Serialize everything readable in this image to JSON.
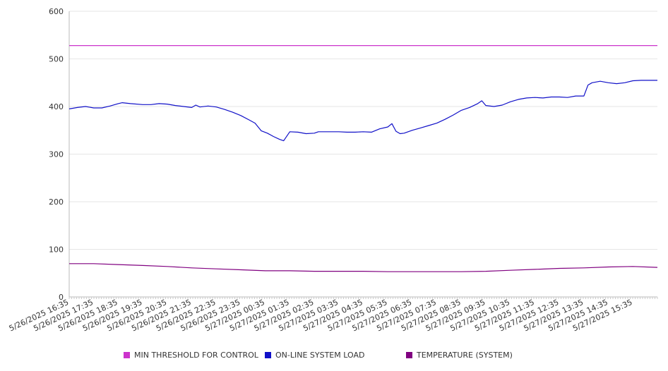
{
  "chart_data": {
    "type": "line",
    "title": "",
    "xlabel": "",
    "ylabel": "",
    "ylim": [
      0,
      600
    ],
    "y_ticks": [
      0,
      100,
      200,
      300,
      400,
      500,
      600
    ],
    "grid": "horizontal",
    "legend_position": "bottom",
    "x_tick_labels": [
      "5/26/2025 16:35",
      "5/26/2025 17:35",
      "5/26/2025 18:35",
      "5/26/2025 19:35",
      "5/26/2025 20:35",
      "5/26/2025 21:35",
      "5/26/2025 22:35",
      "5/26/2025 23:35",
      "5/27/2025 00:35",
      "5/27/2025 01:35",
      "5/27/2025 02:35",
      "5/27/2025 03:35",
      "5/27/2025 04:35",
      "5/27/2025 05:35",
      "5/27/2025 06:35",
      "5/27/2025 07:35",
      "5/27/2025 08:35",
      "5/27/2025 09:35",
      "5/27/2025 10:35",
      "5/27/2025 11:35",
      "5/27/2025 12:35",
      "5/27/2025 13:35",
      "5/27/2025 14:35",
      "5/27/2025 15:35"
    ],
    "series": [
      {
        "name": "MIN THRESHOLD FOR CONTROL",
        "color": "#cc33cc",
        "points": [
          [
            "5/26/2025 16:35",
            528
          ],
          [
            "5/27/2025 16:35",
            528
          ]
        ]
      },
      {
        "name": "ON-LINE SYSTEM LOAD",
        "color": "#1010c8",
        "points": [
          [
            "5/26/2025 16:35",
            395
          ],
          [
            "5/26/2025 16:55",
            398
          ],
          [
            "5/26/2025 17:15",
            400
          ],
          [
            "5/26/2025 17:35",
            397
          ],
          [
            "5/26/2025 17:55",
            397
          ],
          [
            "5/26/2025 18:15",
            401
          ],
          [
            "5/26/2025 18:35",
            406
          ],
          [
            "5/26/2025 18:45",
            408
          ],
          [
            "5/26/2025 19:05",
            406
          ],
          [
            "5/26/2025 19:35",
            404
          ],
          [
            "5/26/2025 19:55",
            404
          ],
          [
            "5/26/2025 20:15",
            406
          ],
          [
            "5/26/2025 20:35",
            405
          ],
          [
            "5/26/2025 20:55",
            402
          ],
          [
            "5/26/2025 21:15",
            400
          ],
          [
            "5/26/2025 21:35",
            398
          ],
          [
            "5/26/2025 21:45",
            403
          ],
          [
            "5/26/2025 21:55",
            399
          ],
          [
            "5/26/2025 22:15",
            401
          ],
          [
            "5/26/2025 22:35",
            399
          ],
          [
            "5/26/2025 22:55",
            394
          ],
          [
            "5/26/2025 23:15",
            388
          ],
          [
            "5/26/2025 23:35",
            381
          ],
          [
            "5/26/2025 23:55",
            372
          ],
          [
            "5/27/2025 00:10",
            365
          ],
          [
            "5/27/2025 00:25",
            349
          ],
          [
            "5/27/2025 00:40",
            344
          ],
          [
            "5/27/2025 00:55",
            337
          ],
          [
            "5/27/2025 01:10",
            331
          ],
          [
            "5/27/2025 01:20",
            328
          ],
          [
            "5/27/2025 01:35",
            347
          ],
          [
            "5/27/2025 01:55",
            346
          ],
          [
            "5/27/2025 02:15",
            343
          ],
          [
            "5/27/2025 02:35",
            344
          ],
          [
            "5/27/2025 02:45",
            347
          ],
          [
            "5/27/2025 03:15",
            347
          ],
          [
            "5/27/2025 03:35",
            347
          ],
          [
            "5/27/2025 03:55",
            346
          ],
          [
            "5/27/2025 04:15",
            346
          ],
          [
            "5/27/2025 04:35",
            347
          ],
          [
            "5/27/2025 04:55",
            346
          ],
          [
            "5/27/2025 05:15",
            353
          ],
          [
            "5/27/2025 05:35",
            357
          ],
          [
            "5/27/2025 05:45",
            364
          ],
          [
            "5/27/2025 05:55",
            348
          ],
          [
            "5/27/2025 06:05",
            343
          ],
          [
            "5/27/2025 06:15",
            344
          ],
          [
            "5/27/2025 06:35",
            350
          ],
          [
            "5/27/2025 06:55",
            355
          ],
          [
            "5/27/2025 07:15",
            360
          ],
          [
            "5/27/2025 07:35",
            365
          ],
          [
            "5/27/2025 07:55",
            373
          ],
          [
            "5/27/2025 08:15",
            382
          ],
          [
            "5/27/2025 08:35",
            392
          ],
          [
            "5/27/2025 08:55",
            398
          ],
          [
            "5/27/2025 09:15",
            406
          ],
          [
            "5/27/2025 09:25",
            412
          ],
          [
            "5/27/2025 09:35",
            402
          ],
          [
            "5/27/2025 09:55",
            400
          ],
          [
            "5/27/2025 10:15",
            403
          ],
          [
            "5/27/2025 10:35",
            410
          ],
          [
            "5/27/2025 10:55",
            415
          ],
          [
            "5/27/2025 11:15",
            418
          ],
          [
            "5/27/2025 11:35",
            419
          ],
          [
            "5/27/2025 11:55",
            418
          ],
          [
            "5/27/2025 12:15",
            420
          ],
          [
            "5/27/2025 12:35",
            420
          ],
          [
            "5/27/2025 12:55",
            419
          ],
          [
            "5/27/2025 13:15",
            422
          ],
          [
            "5/27/2025 13:35",
            422
          ],
          [
            "5/27/2025 13:45",
            445
          ],
          [
            "5/27/2025 13:55",
            450
          ],
          [
            "5/27/2025 14:15",
            453
          ],
          [
            "5/27/2025 14:35",
            450
          ],
          [
            "5/27/2025 14:55",
            448
          ],
          [
            "5/27/2025 15:15",
            450
          ],
          [
            "5/27/2025 15:35",
            454
          ],
          [
            "5/27/2025 15:55",
            455
          ],
          [
            "5/27/2025 16:15",
            455
          ],
          [
            "5/27/2025 16:35",
            455
          ]
        ]
      },
      {
        "name": "TEMPERATURE (SYSTEM)",
        "color": "#800080",
        "points": [
          [
            "5/26/2025 16:35",
            70
          ],
          [
            "5/26/2025 17:35",
            70
          ],
          [
            "5/26/2025 18:35",
            68
          ],
          [
            "5/26/2025 19:35",
            66
          ],
          [
            "5/26/2025 20:35",
            64
          ],
          [
            "5/26/2025 21:35",
            61
          ],
          [
            "5/26/2025 22:35",
            59
          ],
          [
            "5/26/2025 23:35",
            57
          ],
          [
            "5/27/2025 00:35",
            55
          ],
          [
            "5/27/2025 01:35",
            55
          ],
          [
            "5/27/2025 02:35",
            54
          ],
          [
            "5/27/2025 03:35",
            54
          ],
          [
            "5/27/2025 04:35",
            54
          ],
          [
            "5/27/2025 05:35",
            53
          ],
          [
            "5/27/2025 06:35",
            53
          ],
          [
            "5/27/2025 07:35",
            53
          ],
          [
            "5/27/2025 08:35",
            53
          ],
          [
            "5/27/2025 09:35",
            54
          ],
          [
            "5/27/2025 10:35",
            56
          ],
          [
            "5/27/2025 11:35",
            58
          ],
          [
            "5/27/2025 12:35",
            60
          ],
          [
            "5/27/2025 13:35",
            61
          ],
          [
            "5/27/2025 14:35",
            63
          ],
          [
            "5/27/2025 15:35",
            64
          ],
          [
            "5/27/2025 16:35",
            62
          ]
        ]
      }
    ]
  }
}
